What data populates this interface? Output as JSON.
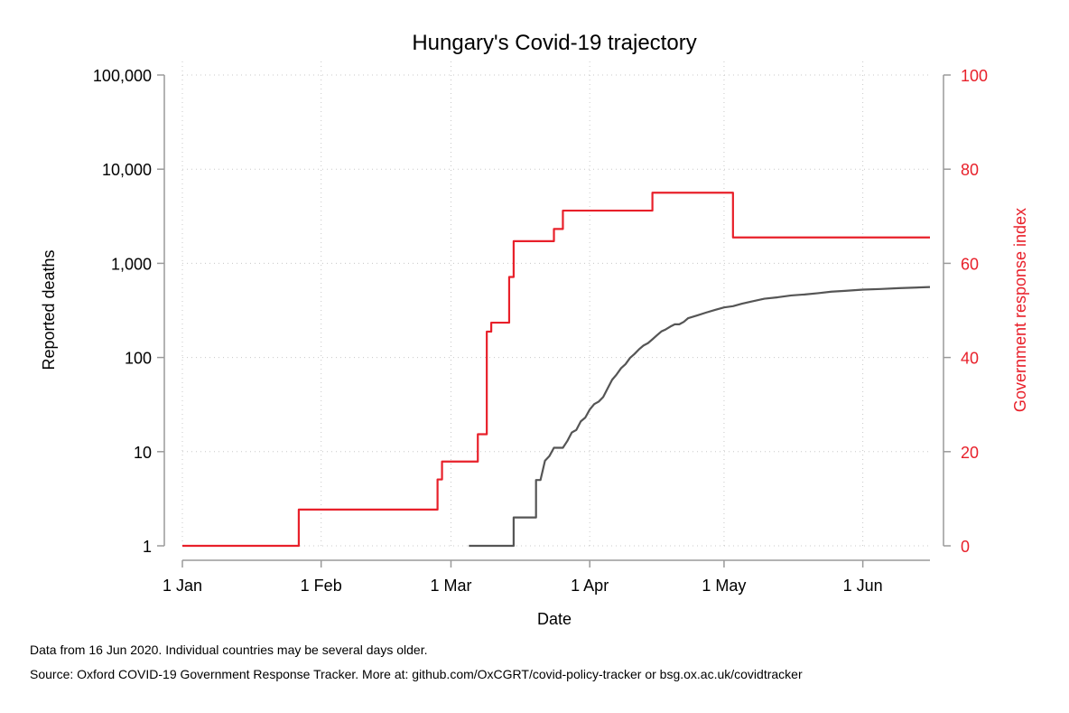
{
  "chart_data": {
    "type": "line",
    "title": "Hungary's Covid-19 trajectory",
    "xlabel": "Date",
    "ylabel_left": "Reported deaths",
    "ylabel_right": "Government response index",
    "x_ticks": [
      "1 Jan",
      "1 Feb",
      "1 Mar",
      "1 Apr",
      "1 May",
      "1 Jun"
    ],
    "x_tick_dates": [
      "2020-01-01",
      "2020-02-01",
      "2020-03-01",
      "2020-04-01",
      "2020-05-01",
      "2020-06-01"
    ],
    "x_range": [
      "2020-01-01",
      "2020-06-16"
    ],
    "y_left_scale": "log",
    "y_left_range": [
      1,
      100000
    ],
    "y_left_ticks": [
      "1",
      "10",
      "100",
      "1,000",
      "10,000",
      "100,000"
    ],
    "y_right_range": [
      0,
      100
    ],
    "y_right_ticks": [
      "0",
      "20",
      "40",
      "60",
      "80",
      "100"
    ],
    "grid": true,
    "series": [
      {
        "axis": "right",
        "color": "#e8202a",
        "step": true,
        "points": [
          [
            "2020-01-01",
            0
          ],
          [
            "2020-01-27",
            0
          ],
          [
            "2020-01-27",
            7.7
          ],
          [
            "2020-02-27",
            7.7
          ],
          [
            "2020-02-27",
            14.1
          ],
          [
            "2020-02-28",
            14.1
          ],
          [
            "2020-02-28",
            17.9
          ],
          [
            "2020-03-07",
            17.9
          ],
          [
            "2020-03-07",
            23.7
          ],
          [
            "2020-03-09",
            23.7
          ],
          [
            "2020-03-09",
            45.5
          ],
          [
            "2020-03-10",
            45.5
          ],
          [
            "2020-03-10",
            47.4
          ],
          [
            "2020-03-14",
            47.4
          ],
          [
            "2020-03-14",
            57.1
          ],
          [
            "2020-03-15",
            57.1
          ],
          [
            "2020-03-15",
            64.7
          ],
          [
            "2020-03-24",
            64.7
          ],
          [
            "2020-03-24",
            67.3
          ],
          [
            "2020-03-26",
            67.3
          ],
          [
            "2020-03-26",
            71.2
          ],
          [
            "2020-04-15",
            71.2
          ],
          [
            "2020-04-15",
            75.0
          ],
          [
            "2020-05-03",
            75.0
          ],
          [
            "2020-05-03",
            65.5
          ],
          [
            "2020-06-16",
            65.5
          ]
        ]
      },
      {
        "axis": "left",
        "color": "#555555",
        "step": false,
        "points": [
          [
            "2020-03-05",
            1
          ],
          [
            "2020-03-15",
            1
          ],
          [
            "2020-03-15",
            2
          ],
          [
            "2020-03-20",
            2
          ],
          [
            "2020-03-20",
            5
          ],
          [
            "2020-03-21",
            5
          ],
          [
            "2020-03-22",
            8
          ],
          [
            "2020-03-23",
            9
          ],
          [
            "2020-03-24",
            11
          ],
          [
            "2020-03-26",
            11
          ],
          [
            "2020-03-27",
            13
          ],
          [
            "2020-03-28",
            16
          ],
          [
            "2020-03-29",
            17
          ],
          [
            "2020-03-30",
            21
          ],
          [
            "2020-03-31",
            23
          ],
          [
            "2020-04-01",
            28
          ],
          [
            "2020-04-02",
            32
          ],
          [
            "2020-04-03",
            34
          ],
          [
            "2020-04-04",
            38
          ],
          [
            "2020-04-05",
            47
          ],
          [
            "2020-04-06",
            58
          ],
          [
            "2020-04-07",
            66
          ],
          [
            "2020-04-08",
            77
          ],
          [
            "2020-04-09",
            85
          ],
          [
            "2020-04-10",
            99
          ],
          [
            "2020-04-11",
            109
          ],
          [
            "2020-04-12",
            122
          ],
          [
            "2020-04-13",
            134
          ],
          [
            "2020-04-14",
            142
          ],
          [
            "2020-04-15",
            156
          ],
          [
            "2020-04-16",
            172
          ],
          [
            "2020-04-17",
            189
          ],
          [
            "2020-04-18",
            199
          ],
          [
            "2020-04-19",
            213
          ],
          [
            "2020-04-20",
            225
          ],
          [
            "2020-04-21",
            225
          ],
          [
            "2020-04-22",
            239
          ],
          [
            "2020-04-23",
            262
          ],
          [
            "2020-04-25",
            280
          ],
          [
            "2020-04-27",
            300
          ],
          [
            "2020-04-29",
            320
          ],
          [
            "2020-05-01",
            340
          ],
          [
            "2020-05-03",
            351
          ],
          [
            "2020-05-05",
            373
          ],
          [
            "2020-05-07",
            392
          ],
          [
            "2020-05-10",
            421
          ],
          [
            "2020-05-13",
            436
          ],
          [
            "2020-05-16",
            456
          ],
          [
            "2020-05-19",
            467
          ],
          [
            "2020-05-22",
            482
          ],
          [
            "2020-05-25",
            500
          ],
          [
            "2020-05-28",
            510
          ],
          [
            "2020-06-01",
            526
          ],
          [
            "2020-06-05",
            534
          ],
          [
            "2020-06-09",
            545
          ],
          [
            "2020-06-16",
            560
          ]
        ]
      }
    ]
  },
  "notes": {
    "data_note": "Data from 16 Jun 2020. Individual countries may be several days older.",
    "source_note": "Source: Oxford COVID-19 Government Response Tracker. More at: github.com/OxCGRT/covid-policy-tracker or bsg.ox.ac.uk/covidtracker"
  }
}
